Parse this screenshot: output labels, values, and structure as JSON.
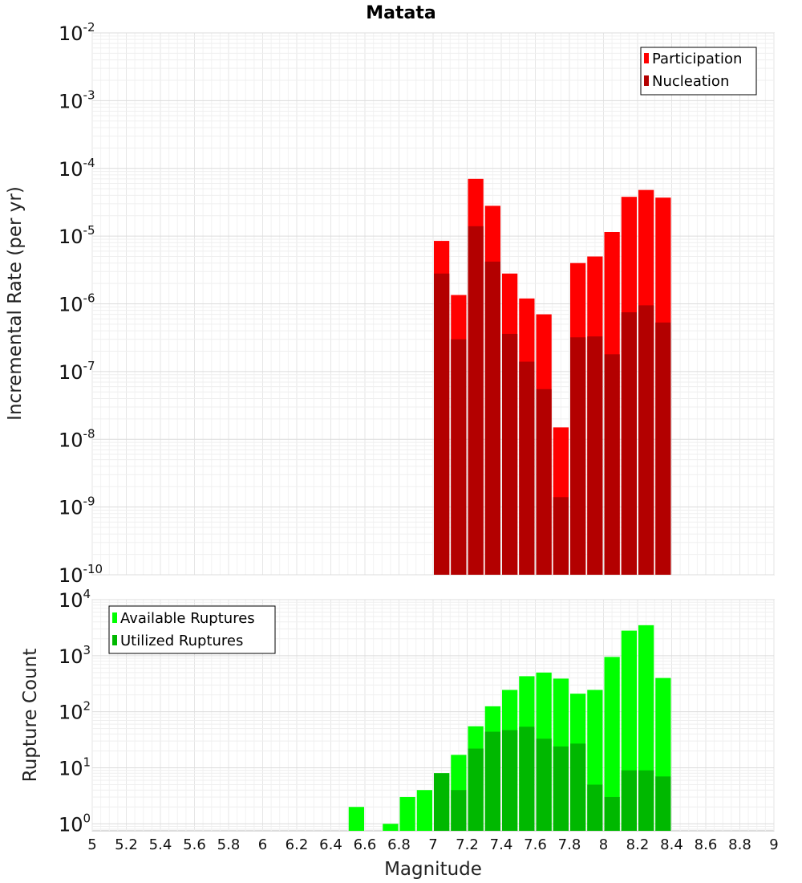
{
  "chart_data": [
    {
      "type": "bar",
      "title": "Matata",
      "xlabel": "",
      "ylabel": "Incremental Rate (per yr)",
      "yscale": "log",
      "ylim": [
        1e-10,
        0.01
      ],
      "xlim": [
        5,
        9
      ],
      "y_ticks": [
        {
          "base": "10",
          "exp": "-10"
        },
        {
          "base": "10",
          "exp": "-9"
        },
        {
          "base": "10",
          "exp": "-8"
        },
        {
          "base": "10",
          "exp": "-7"
        },
        {
          "base": "10",
          "exp": "-6"
        },
        {
          "base": "10",
          "exp": "-5"
        },
        {
          "base": "10",
          "exp": "-4"
        },
        {
          "base": "10",
          "exp": "-3"
        },
        {
          "base": "10",
          "exp": "-2"
        }
      ],
      "legend_position": "top-right",
      "grid": true,
      "series": [
        {
          "name": "Participation",
          "color": "#ff0000",
          "points": [
            [
              7.05,
              8.5e-06
            ],
            [
              7.15,
              1.35e-06
            ],
            [
              7.25,
              7e-05
            ],
            [
              7.35,
              2.8e-05
            ],
            [
              7.45,
              2.8e-06
            ],
            [
              7.55,
              1.2e-06
            ],
            [
              7.65,
              7e-07
            ],
            [
              7.75,
              1.5e-08
            ],
            [
              7.85,
              4e-06
            ],
            [
              7.95,
              5e-06
            ],
            [
              8.05,
              1.15e-05
            ],
            [
              8.15,
              3.8e-05
            ],
            [
              8.25,
              4.8e-05
            ],
            [
              8.35,
              3.7e-05
            ]
          ]
        },
        {
          "name": "Nucleation",
          "color": "#b30000",
          "points": [
            [
              7.05,
              2.8e-06
            ],
            [
              7.15,
              3e-07
            ],
            [
              7.25,
              1.4e-05
            ],
            [
              7.35,
              4.2e-06
            ],
            [
              7.45,
              3.6e-07
            ],
            [
              7.55,
              1.4e-07
            ],
            [
              7.65,
              5.5e-08
            ],
            [
              7.75,
              1.4e-09
            ],
            [
              7.85,
              3.2e-07
            ],
            [
              7.95,
              3.3e-07
            ],
            [
              8.05,
              1.8e-07
            ],
            [
              8.15,
              7.5e-07
            ],
            [
              8.25,
              9.5e-07
            ],
            [
              8.35,
              5.3e-07
            ]
          ]
        }
      ]
    },
    {
      "type": "bar",
      "xlabel": "Magnitude",
      "ylabel": "Rupture Count",
      "yscale": "log",
      "ylim": [
        0.75,
        10000
      ],
      "xlim": [
        5,
        9
      ],
      "x_ticks": [
        "5",
        "5.2",
        "5.4",
        "5.6",
        "5.8",
        "6",
        "6.2",
        "6.4",
        "6.6",
        "6.8",
        "7",
        "7.2",
        "7.4",
        "7.6",
        "7.8",
        "8",
        "8.2",
        "8.4",
        "8.6",
        "8.8",
        "9"
      ],
      "y_ticks": [
        {
          "base": "10",
          "exp": "0"
        },
        {
          "base": "10",
          "exp": "1"
        },
        {
          "base": "10",
          "exp": "2"
        },
        {
          "base": "10",
          "exp": "3"
        },
        {
          "base": "10",
          "exp": "4"
        }
      ],
      "legend_position": "top-left",
      "grid": true,
      "series": [
        {
          "name": "Available Ruptures",
          "color": "#00ff00",
          "points": [
            [
              6.55,
              2
            ],
            [
              6.75,
              1
            ],
            [
              6.85,
              3
            ],
            [
              6.95,
              4
            ],
            [
              7.05,
              8
            ],
            [
              7.15,
              17
            ],
            [
              7.25,
              55
            ],
            [
              7.35,
              125
            ],
            [
              7.45,
              245
            ],
            [
              7.55,
              430
            ],
            [
              7.65,
              500
            ],
            [
              7.75,
              390
            ],
            [
              7.85,
              210
            ],
            [
              7.95,
              245
            ],
            [
              8.05,
              950
            ],
            [
              8.15,
              2800
            ],
            [
              8.25,
              3500
            ],
            [
              8.35,
              400
            ]
          ]
        },
        {
          "name": "Utilized Ruptures",
          "color": "#00b800",
          "points": [
            [
              7.05,
              8
            ],
            [
              7.15,
              4
            ],
            [
              7.25,
              22
            ],
            [
              7.35,
              44
            ],
            [
              7.45,
              47
            ],
            [
              7.55,
              54
            ],
            [
              7.65,
              33
            ],
            [
              7.75,
              24
            ],
            [
              7.85,
              27
            ],
            [
              7.95,
              5
            ],
            [
              8.05,
              3
            ],
            [
              8.15,
              9
            ],
            [
              8.25,
              9
            ],
            [
              8.35,
              7
            ]
          ]
        }
      ]
    }
  ]
}
